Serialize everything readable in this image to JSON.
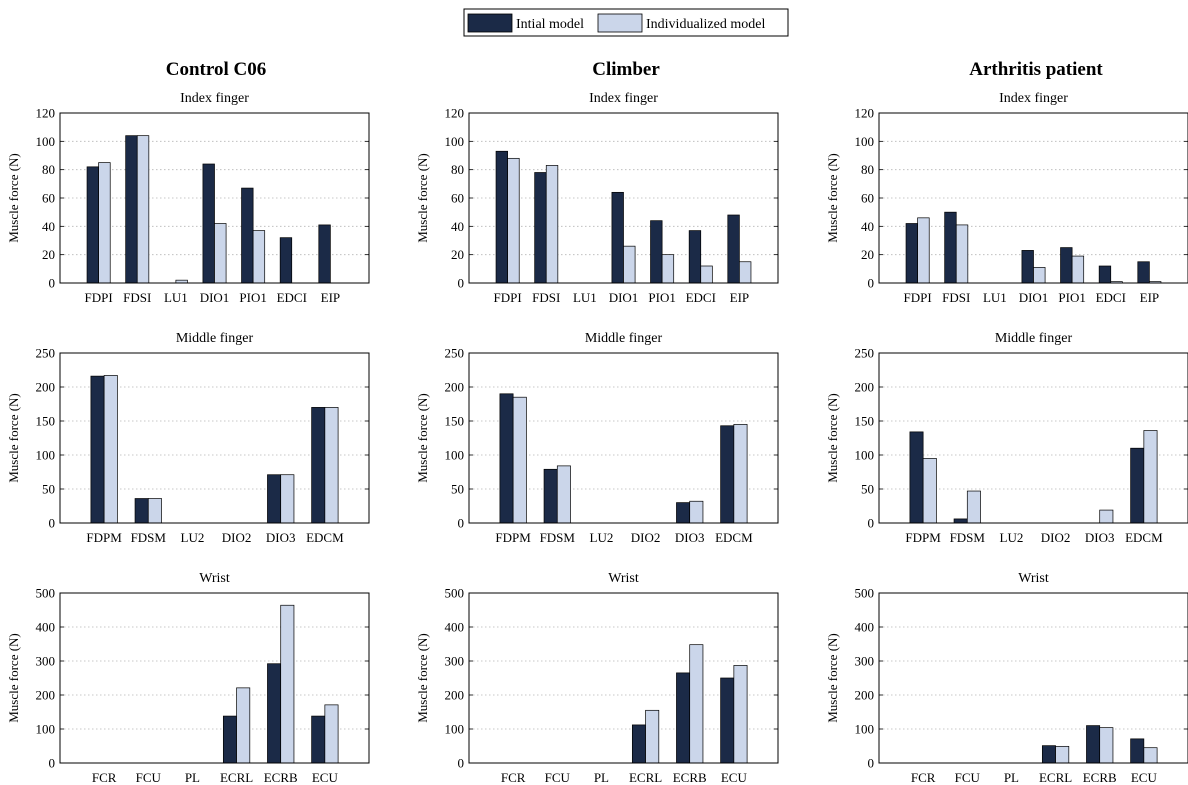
{
  "legend": {
    "items": [
      {
        "label": "Intial model",
        "color": "#1b2a47"
      },
      {
        "label": "Individualized model",
        "color": "#cbd6ea"
      }
    ]
  },
  "columns": [
    "Control C06",
    "Climber",
    "Arthritis patient"
  ],
  "chart_data": [
    {
      "type": "bar",
      "group": "Control C06",
      "title": "Index finger",
      "ylabel": "Muscle force (N)",
      "ylim": [
        0,
        120
      ],
      "yticks": [
        0,
        20,
        40,
        60,
        80,
        100,
        120
      ],
      "grid": true,
      "categories": [
        "FDPI",
        "FDSI",
        "LU1",
        "DIO1",
        "PIO1",
        "EDCI",
        "EIP"
      ],
      "series": [
        {
          "name": "Intial model",
          "values": [
            82,
            104,
            0,
            84,
            67,
            32,
            41
          ]
        },
        {
          "name": "Individualized model",
          "values": [
            85,
            104,
            2,
            42,
            37,
            0,
            0
          ]
        }
      ]
    },
    {
      "type": "bar",
      "group": "Climber",
      "title": "Index finger",
      "ylabel": "Muscle force (N)",
      "ylim": [
        0,
        120
      ],
      "yticks": [
        0,
        20,
        40,
        60,
        80,
        100,
        120
      ],
      "grid": true,
      "categories": [
        "FDPI",
        "FDSI",
        "LU1",
        "DIO1",
        "PIO1",
        "EDCI",
        "EIP"
      ],
      "series": [
        {
          "name": "Intial model",
          "values": [
            93,
            78,
            0,
            64,
            44,
            37,
            48
          ]
        },
        {
          "name": "Individualized model",
          "values": [
            88,
            83,
            0,
            26,
            20,
            12,
            15
          ]
        }
      ]
    },
    {
      "type": "bar",
      "group": "Arthritis patient",
      "title": "Index finger",
      "ylabel": "Muscle force (N)",
      "ylim": [
        0,
        120
      ],
      "yticks": [
        0,
        20,
        40,
        60,
        80,
        100,
        120
      ],
      "grid": true,
      "categories": [
        "FDPI",
        "FDSI",
        "LU1",
        "DIO1",
        "PIO1",
        "EDCI",
        "EIP"
      ],
      "series": [
        {
          "name": "Intial model",
          "values": [
            42,
            50,
            0,
            23,
            25,
            12,
            15
          ]
        },
        {
          "name": "Individualized model",
          "values": [
            46,
            41,
            0,
            11,
            19,
            1,
            1
          ]
        }
      ]
    },
    {
      "type": "bar",
      "group": "Control C06",
      "title": "Middle finger",
      "ylabel": "Muscle force (N)",
      "ylim": [
        0,
        250
      ],
      "yticks": [
        0,
        50,
        100,
        150,
        200,
        250
      ],
      "grid": true,
      "categories": [
        "FDPM",
        "FDSM",
        "LU2",
        "DIO2",
        "DIO3",
        "EDCM"
      ],
      "series": [
        {
          "name": "Intial model",
          "values": [
            216,
            36,
            0,
            0,
            71,
            170
          ]
        },
        {
          "name": "Individualized model",
          "values": [
            217,
            36,
            0,
            0,
            71,
            170
          ]
        }
      ]
    },
    {
      "type": "bar",
      "group": "Climber",
      "title": "Middle finger",
      "ylabel": "Muscle force (N)",
      "ylim": [
        0,
        250
      ],
      "yticks": [
        0,
        50,
        100,
        150,
        200,
        250
      ],
      "grid": true,
      "categories": [
        "FDPM",
        "FDSM",
        "LU2",
        "DIO2",
        "DIO3",
        "EDCM"
      ],
      "series": [
        {
          "name": "Intial model",
          "values": [
            190,
            79,
            0,
            0,
            30,
            143
          ]
        },
        {
          "name": "Individualized model",
          "values": [
            185,
            84,
            0,
            0,
            32,
            145
          ]
        }
      ]
    },
    {
      "type": "bar",
      "group": "Arthritis patient",
      "title": "Middle finger",
      "ylabel": "Muscle force (N)",
      "ylim": [
        0,
        250
      ],
      "yticks": [
        0,
        50,
        100,
        150,
        200,
        250
      ],
      "grid": true,
      "categories": [
        "FDPM",
        "FDSM",
        "LU2",
        "DIO2",
        "DIO3",
        "EDCM"
      ],
      "series": [
        {
          "name": "Intial model",
          "values": [
            134,
            6,
            0,
            0,
            0,
            110
          ]
        },
        {
          "name": "Individualized model",
          "values": [
            95,
            47,
            0,
            0,
            19,
            136
          ]
        }
      ]
    },
    {
      "type": "bar",
      "group": "Control C06",
      "title": "Wrist",
      "ylabel": "Muscle force (N)",
      "ylim": [
        0,
        500
      ],
      "yticks": [
        0,
        100,
        200,
        300,
        400,
        500
      ],
      "grid": true,
      "categories": [
        "FCR",
        "FCU",
        "PL",
        "ECRL",
        "ECRB",
        "ECU"
      ],
      "series": [
        {
          "name": "Intial model",
          "values": [
            0,
            0,
            0,
            138,
            292,
            138
          ]
        },
        {
          "name": "Individualized model",
          "values": [
            0,
            0,
            0,
            221,
            464,
            171
          ]
        }
      ]
    },
    {
      "type": "bar",
      "group": "Climber",
      "title": "Wrist",
      "ylabel": "Muscle force (N)",
      "ylim": [
        0,
        500
      ],
      "yticks": [
        0,
        100,
        200,
        300,
        400,
        500
      ],
      "grid": true,
      "categories": [
        "FCR",
        "FCU",
        "PL",
        "ECRL",
        "ECRB",
        "ECU"
      ],
      "series": [
        {
          "name": "Intial model",
          "values": [
            0,
            0,
            0,
            112,
            265,
            250
          ]
        },
        {
          "name": "Individualized model",
          "values": [
            0,
            0,
            0,
            155,
            348,
            287
          ]
        }
      ]
    },
    {
      "type": "bar",
      "group": "Arthritis patient",
      "title": "Wrist",
      "ylabel": "Muscle force (N)",
      "ylim": [
        0,
        500
      ],
      "yticks": [
        0,
        100,
        200,
        300,
        400,
        500
      ],
      "grid": true,
      "categories": [
        "FCR",
        "FCU",
        "PL",
        "ECRL",
        "ECRB",
        "ECU"
      ],
      "series": [
        {
          "name": "Intial model",
          "values": [
            0,
            0,
            0,
            51,
            110,
            71
          ]
        },
        {
          "name": "Individualized model",
          "values": [
            0,
            0,
            0,
            49,
            104,
            45
          ]
        }
      ]
    }
  ]
}
